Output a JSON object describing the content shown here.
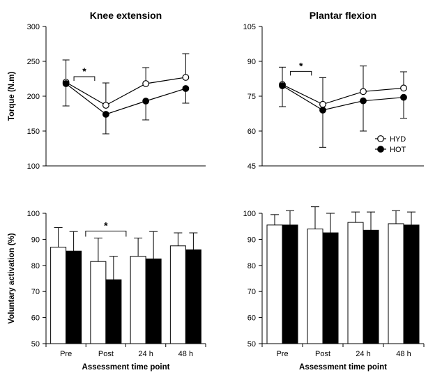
{
  "chart_data": [
    {
      "type": "line",
      "title": "Knee extension",
      "xlabel": "",
      "ylabel": "Torque (N.m)",
      "categories": [
        "Pre",
        "Post",
        "24 h",
        "48 h"
      ],
      "ylim": [
        100,
        300
      ],
      "yticks": [
        "100",
        "150",
        "200",
        "250",
        "300"
      ],
      "grid": false,
      "series": [
        {
          "name": "HYD",
          "marker": "open-circle",
          "values": [
            220,
            187,
            218,
            227
          ],
          "error_up": [
            32,
            32,
            23,
            34
          ],
          "error_down": [
            0,
            0,
            0,
            0
          ]
        },
        {
          "name": "HOT",
          "marker": "filled-circle",
          "values": [
            218,
            174,
            193,
            211
          ],
          "error_up": [
            0,
            0,
            0,
            0
          ],
          "error_down": [
            32,
            28,
            27,
            21
          ]
        }
      ],
      "annotations": [
        {
          "text": "*",
          "from": "Pre",
          "to": "Post"
        }
      ]
    },
    {
      "type": "line",
      "title": "Plantar flexion",
      "xlabel": "",
      "ylabel": "",
      "categories": [
        "Pre",
        "Post",
        "24 h",
        "48 h"
      ],
      "ylim": [
        45,
        105
      ],
      "yticks": [
        "45",
        "60",
        "75",
        "90",
        "105"
      ],
      "grid": false,
      "legend": {
        "position": "bottom-right",
        "entries": [
          "HYD",
          "HOT"
        ]
      },
      "series": [
        {
          "name": "HYD",
          "marker": "open-circle",
          "values": [
            80,
            71.5,
            77,
            78.5
          ],
          "error_up": [
            7.5,
            11.5,
            11,
            7
          ],
          "error_down": [
            0,
            0,
            0,
            0
          ]
        },
        {
          "name": "HOT",
          "marker": "filled-circle",
          "values": [
            79.5,
            69,
            73,
            74.5
          ],
          "error_up": [
            0,
            0,
            0,
            0
          ],
          "error_down": [
            9,
            16,
            13,
            9
          ]
        }
      ],
      "annotations": [
        {
          "text": "*",
          "from": "Pre",
          "to": "Post"
        }
      ]
    },
    {
      "type": "bar",
      "title": "",
      "xlabel": "Assessment time point",
      "ylabel": "Voluntary activation (%)",
      "categories": [
        "Pre",
        "Post",
        "24 h",
        "48 h"
      ],
      "ylim": [
        50,
        100
      ],
      "yticks": [
        "50",
        "60",
        "70",
        "80",
        "90",
        "100"
      ],
      "grid": false,
      "series": [
        {
          "name": "HYD",
          "fill": "#ffffff",
          "values": [
            87,
            81.5,
            83.5,
            87.5
          ],
          "error_up": [
            7.5,
            9,
            7,
            5
          ]
        },
        {
          "name": "HOT",
          "fill": "#000000",
          "values": [
            85.5,
            74.5,
            82.5,
            86
          ],
          "error_up": [
            7.5,
            9,
            10.5,
            6.5
          ]
        }
      ],
      "annotations": [
        {
          "text": "*",
          "from": "Post-HYD",
          "to": "Post-HOT"
        }
      ]
    },
    {
      "type": "bar",
      "title": "",
      "xlabel": "Assessment time point",
      "ylabel": "",
      "categories": [
        "Pre",
        "Post",
        "24 h",
        "48 h"
      ],
      "ylim": [
        50,
        100
      ],
      "yticks": [
        "50",
        "60",
        "70",
        "80",
        "90",
        "100"
      ],
      "grid": false,
      "series": [
        {
          "name": "HYD",
          "fill": "#ffffff",
          "values": [
            95.5,
            94,
            96.5,
            96
          ],
          "error_up": [
            4,
            8.5,
            4,
            5
          ]
        },
        {
          "name": "HOT",
          "fill": "#000000",
          "values": [
            95.5,
            92.5,
            93.5,
            95.5
          ],
          "error_up": [
            5.5,
            7.5,
            7,
            5
          ]
        }
      ]
    }
  ]
}
